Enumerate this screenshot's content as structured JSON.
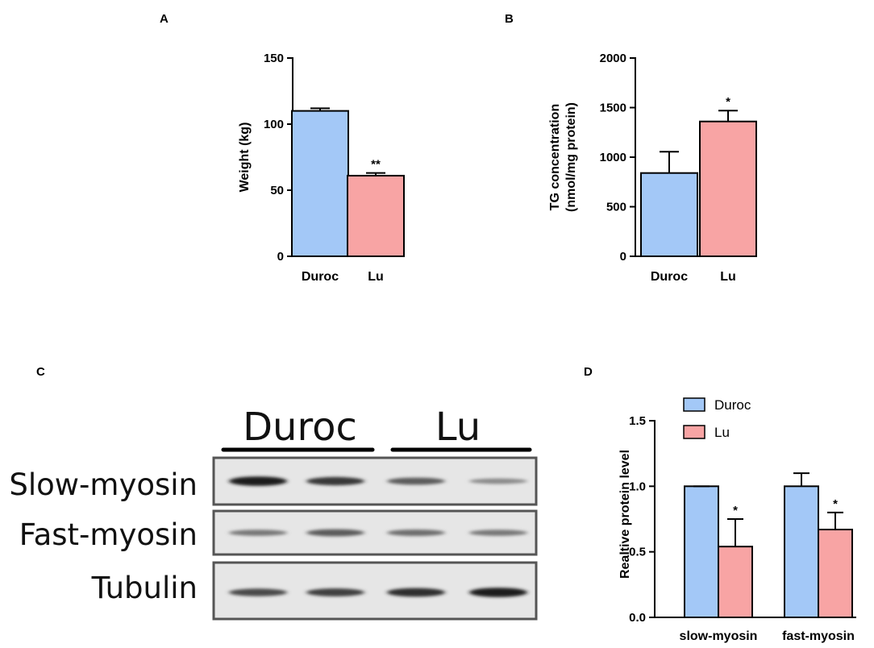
{
  "colors": {
    "duroc": "#a3c8f7",
    "lu": "#f8a4a4",
    "axis": "#000000",
    "blot_border": "#555555"
  },
  "chart_data": [
    {
      "panel": "A",
      "type": "bar",
      "categories": [
        "Duroc",
        "Lu"
      ],
      "values": [
        110,
        61
      ],
      "errors": [
        2,
        2
      ],
      "significance": [
        "",
        "**"
      ],
      "ylabel": "Weight (kg)",
      "ylim": [
        0,
        150
      ],
      "yticks": [
        0,
        50,
        100,
        150
      ]
    },
    {
      "panel": "B",
      "type": "bar",
      "categories": [
        "Duroc",
        "Lu"
      ],
      "values": [
        840,
        1360
      ],
      "errors": [
        215,
        110
      ],
      "significance": [
        "",
        "*"
      ],
      "ylabel_lines": [
        "TG concentration",
        "(nmol/mg protein)"
      ],
      "ylim": [
        0,
        2000
      ],
      "yticks": [
        0,
        500,
        1000,
        1500,
        2000
      ]
    },
    {
      "panel": "D",
      "type": "bar",
      "categories": [
        "slow-myosin",
        "fast-myosin"
      ],
      "series": [
        {
          "name": "Duroc",
          "values": [
            1.0,
            1.0
          ],
          "errors": [
            0.0,
            0.1
          ],
          "significance": [
            "",
            ""
          ]
        },
        {
          "name": "Lu",
          "values": [
            0.54,
            0.67
          ],
          "errors": [
            0.21,
            0.13
          ],
          "significance": [
            "*",
            "*"
          ]
        }
      ],
      "ylabel": "Realtive protein level",
      "ylim": [
        0,
        1.5
      ],
      "yticks": [
        "0.0",
        "0.5",
        "1.0",
        "1.5"
      ],
      "legend": "top-left"
    }
  ],
  "western_blot": {
    "panel": "C",
    "groups": [
      "Duroc",
      "Lu"
    ],
    "rows": [
      {
        "label": "Slow-myosin",
        "band_intensity": [
          0.95,
          0.8,
          0.6,
          0.35
        ]
      },
      {
        "label": "Fast-myosin",
        "band_intensity": [
          0.45,
          0.6,
          0.5,
          0.45
        ]
      },
      {
        "label": "Tubulin",
        "band_intensity": [
          0.7,
          0.75,
          0.85,
          0.95
        ]
      }
    ]
  }
}
